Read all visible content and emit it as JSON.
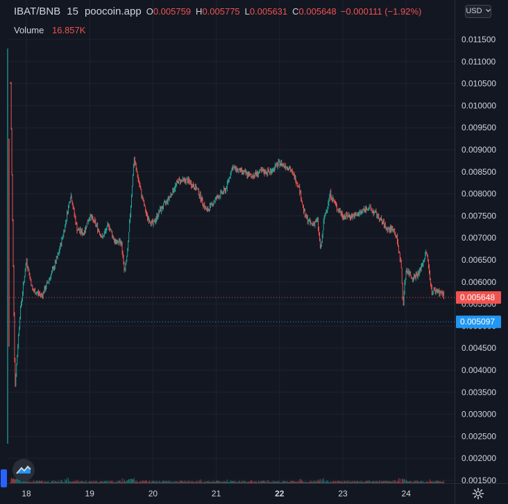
{
  "legend": {
    "pair": "IBAT/BNB",
    "interval": "15",
    "source": "poocoin.app",
    "open_label": "O",
    "open": "0.005759",
    "high_label": "H",
    "high": "0.005775",
    "low_label": "L",
    "low": "0.005631",
    "close_label": "C",
    "close": "0.005648",
    "change": "−0.000111 (−1.92%)",
    "volume_label": "Volume",
    "volume_value": "16.857K"
  },
  "currency": "USD",
  "colors": {
    "background": "#131722",
    "up": "#26a69a",
    "down": "#ef5350",
    "grid": "#1f2330",
    "last_price": "#ef5350",
    "reference_price": "#2196f3",
    "text": "#d1d4dc"
  },
  "icons": [
    "chevron-down-icon",
    "gear-icon",
    "tradingview-logo-icon"
  ],
  "chart_data": {
    "type": "candlestick",
    "x_tick_labels": [
      "18",
      "19",
      "20",
      "21",
      "22",
      "23",
      "24"
    ],
    "y_tick_labels": [
      "0.011500",
      "0.011000",
      "0.010500",
      "0.010000",
      "0.009500",
      "0.009000",
      "0.008500",
      "0.008000",
      "0.007500",
      "0.007000",
      "0.006500",
      "0.006000",
      "0.005500",
      "0.005000",
      "0.004500",
      "0.004000",
      "0.003500",
      "0.003000",
      "0.002500",
      "0.002000",
      "0.001500"
    ],
    "ylim": [
      0.0015,
      0.0123
    ],
    "last_price_label": "0.005648",
    "reference_price_label": "0.005097",
    "price_path": [
      [
        17.75,
        0.0105
      ],
      [
        17.82,
        0.0036
      ],
      [
        17.9,
        0.0053
      ],
      [
        18.0,
        0.0065
      ],
      [
        18.1,
        0.0058
      ],
      [
        18.25,
        0.0057
      ],
      [
        18.4,
        0.0062
      ],
      [
        18.5,
        0.0066
      ],
      [
        18.6,
        0.0072
      ],
      [
        18.7,
        0.008
      ],
      [
        18.8,
        0.0072
      ],
      [
        18.9,
        0.0071
      ],
      [
        19.0,
        0.0075
      ],
      [
        19.1,
        0.0073
      ],
      [
        19.2,
        0.007
      ],
      [
        19.3,
        0.0073
      ],
      [
        19.4,
        0.0069
      ],
      [
        19.5,
        0.0069
      ],
      [
        19.55,
        0.0062
      ],
      [
        19.6,
        0.0067
      ],
      [
        19.7,
        0.0088
      ],
      [
        19.8,
        0.0081
      ],
      [
        19.9,
        0.0075
      ],
      [
        20.0,
        0.0073
      ],
      [
        20.1,
        0.0076
      ],
      [
        20.25,
        0.0079
      ],
      [
        20.4,
        0.0083
      ],
      [
        20.55,
        0.0083
      ],
      [
        20.7,
        0.0081
      ],
      [
        20.85,
        0.0076
      ],
      [
        21.0,
        0.0079
      ],
      [
        21.15,
        0.0081
      ],
      [
        21.25,
        0.0086
      ],
      [
        21.4,
        0.0085
      ],
      [
        21.55,
        0.0084
      ],
      [
        21.7,
        0.0085
      ],
      [
        21.85,
        0.0085
      ],
      [
        22.0,
        0.0087
      ],
      [
        22.15,
        0.0086
      ],
      [
        22.3,
        0.0082
      ],
      [
        22.4,
        0.0075
      ],
      [
        22.5,
        0.0073
      ],
      [
        22.6,
        0.0074
      ],
      [
        22.65,
        0.0067
      ],
      [
        22.7,
        0.0074
      ],
      [
        22.8,
        0.008
      ],
      [
        22.9,
        0.0077
      ],
      [
        23.0,
        0.0075
      ],
      [
        23.2,
        0.0075
      ],
      [
        23.4,
        0.0077
      ],
      [
        23.55,
        0.0075
      ],
      [
        23.7,
        0.0072
      ],
      [
        23.8,
        0.0072
      ],
      [
        23.85,
        0.007
      ],
      [
        23.92,
        0.0064
      ],
      [
        23.95,
        0.0055
      ],
      [
        24.0,
        0.0063
      ],
      [
        24.1,
        0.0061
      ],
      [
        24.2,
        0.0062
      ],
      [
        24.28,
        0.0065
      ],
      [
        24.32,
        0.0067
      ],
      [
        24.36,
        0.0063
      ],
      [
        24.4,
        0.0058
      ],
      [
        24.5,
        0.0058
      ],
      [
        24.6,
        0.0057
      ]
    ]
  }
}
